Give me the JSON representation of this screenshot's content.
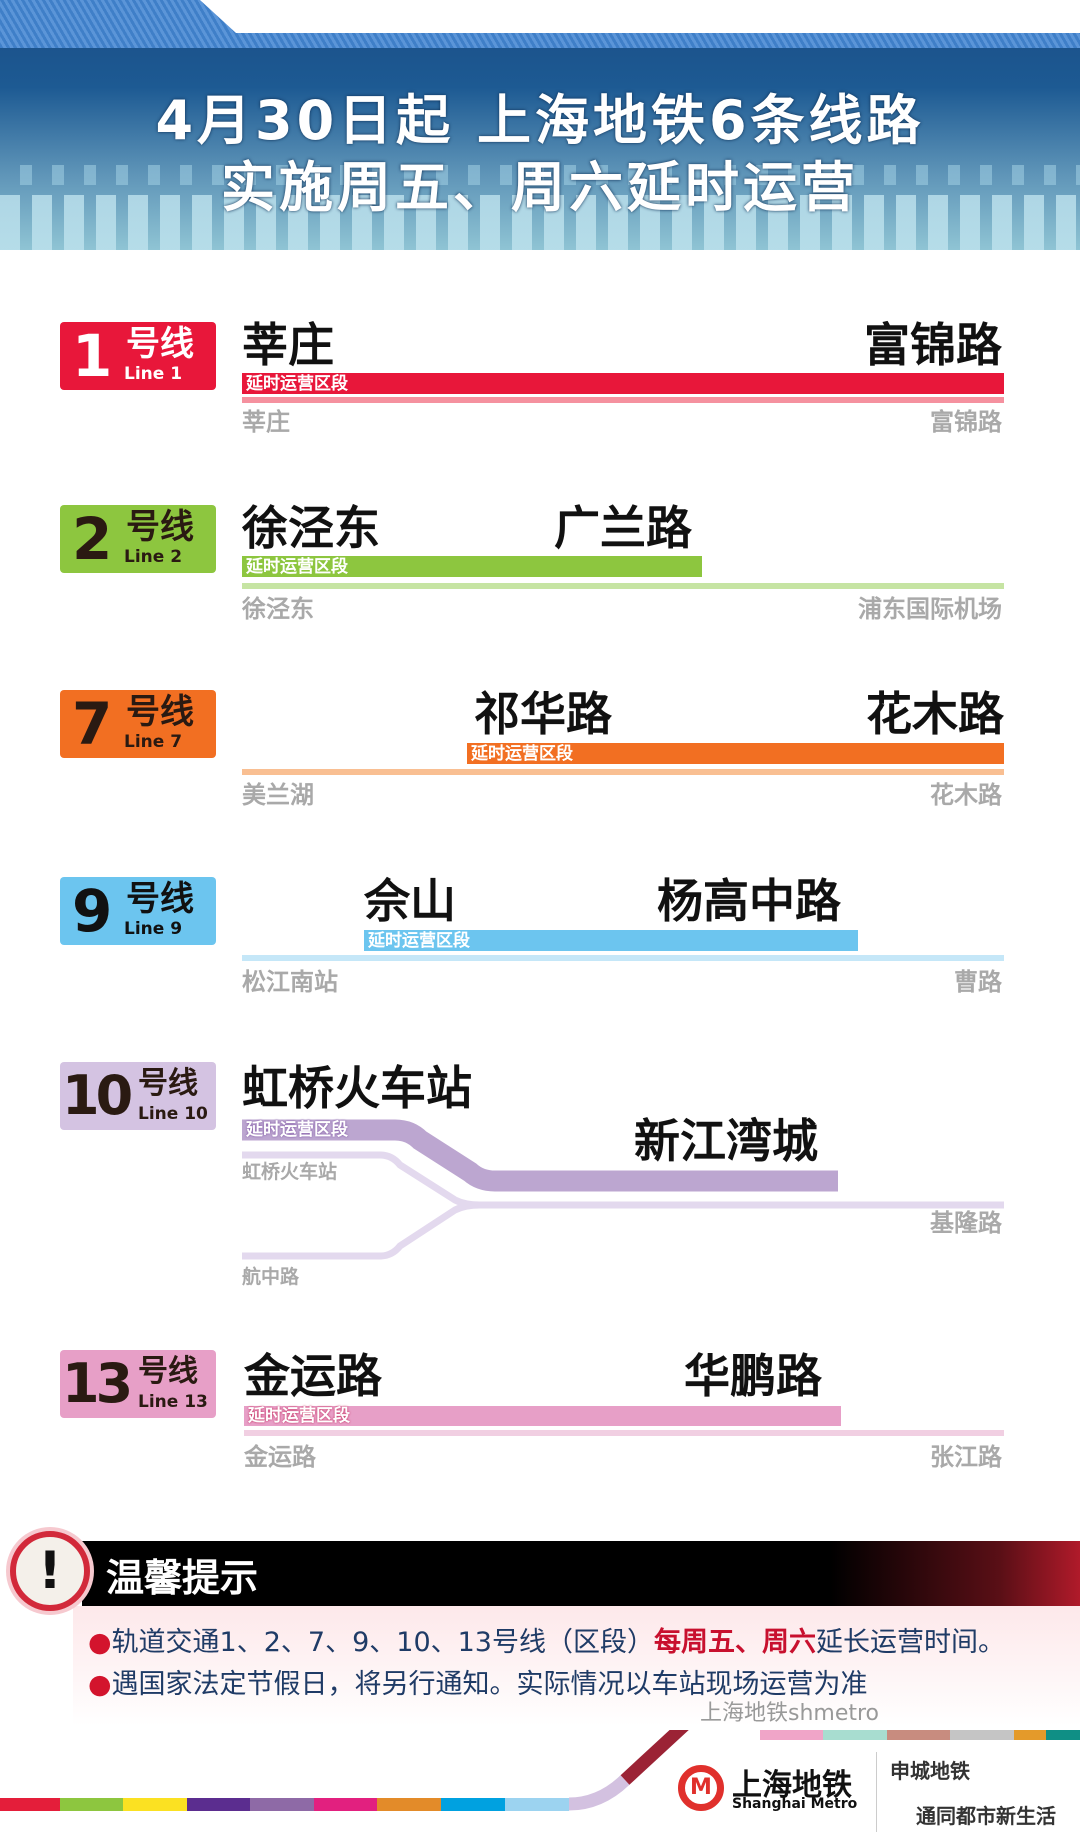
{
  "header": {
    "title_line1": "4月30日起  上海地铁6条线路",
    "title_line2": "实施周五、周六延时运营"
  },
  "section_label": "延时运营区段",
  "lines": {
    "l1": {
      "num": "1",
      "suffix": "号线",
      "en": "Line 1",
      "color": "#e8173a",
      "light": "#f5919f",
      "ext_start": "莘庄",
      "ext_end": "富锦路",
      "term_start": "莘庄",
      "term_end": "富锦路"
    },
    "l2": {
      "num": "2",
      "suffix": "号线",
      "en": "Line 2",
      "color": "#8dc63f",
      "light": "#c6e4a3",
      "ext_start": "徐泾东",
      "ext_end": "广兰路",
      "term_start": "徐泾东",
      "term_end": "浦东国际机场"
    },
    "l7": {
      "num": "7",
      "suffix": "号线",
      "en": "Line 7",
      "color": "#f26f22",
      "light": "#f9bf92",
      "ext_start": "祁华路",
      "ext_end": "花木路",
      "term_start": "美兰湖",
      "term_end": "花木路"
    },
    "l9": {
      "num": "9",
      "suffix": "号线",
      "en": "Line 9",
      "color": "#6cc5ef",
      "light": "#c5e7f8",
      "ext_start": "佘山",
      "ext_end": "杨高中路",
      "term_start": "松江南站",
      "term_end": "曹路"
    },
    "l10": {
      "num": "10",
      "suffix": "号线",
      "en": "Line 10",
      "color": "#bca6d0",
      "light": "#e3d9ee",
      "ext_start": "虹桥火车站",
      "ext_end": "新江湾城",
      "term_branch1": "虹桥火车站",
      "term_branch2": "航中路",
      "term_end": "基隆路"
    },
    "l13": {
      "num": "13",
      "suffix": "号线",
      "en": "Line 13",
      "color": "#e79fc7",
      "light": "#f1cfe2",
      "ext_start": "金运路",
      "ext_end": "华鹏路",
      "term_start": "金运路",
      "term_end": "张江路"
    }
  },
  "tips": {
    "title": "温馨提示",
    "line1_pre": "轨道交通1、2、7、9、10、13号线（区段）",
    "line1_highlight": "每周五、周六",
    "line1_post": "延长运营时间。",
    "line2": "遇国家法定节假日，将另行通知。实际情况以车站现场运营为准"
  },
  "footer": {
    "logo_cn": "上海地铁",
    "logo_en": "Shanghai Metro",
    "slogan1": "申城地铁",
    "slogan2": "通同都市新生活",
    "watermark": "上海地铁shmetro"
  }
}
